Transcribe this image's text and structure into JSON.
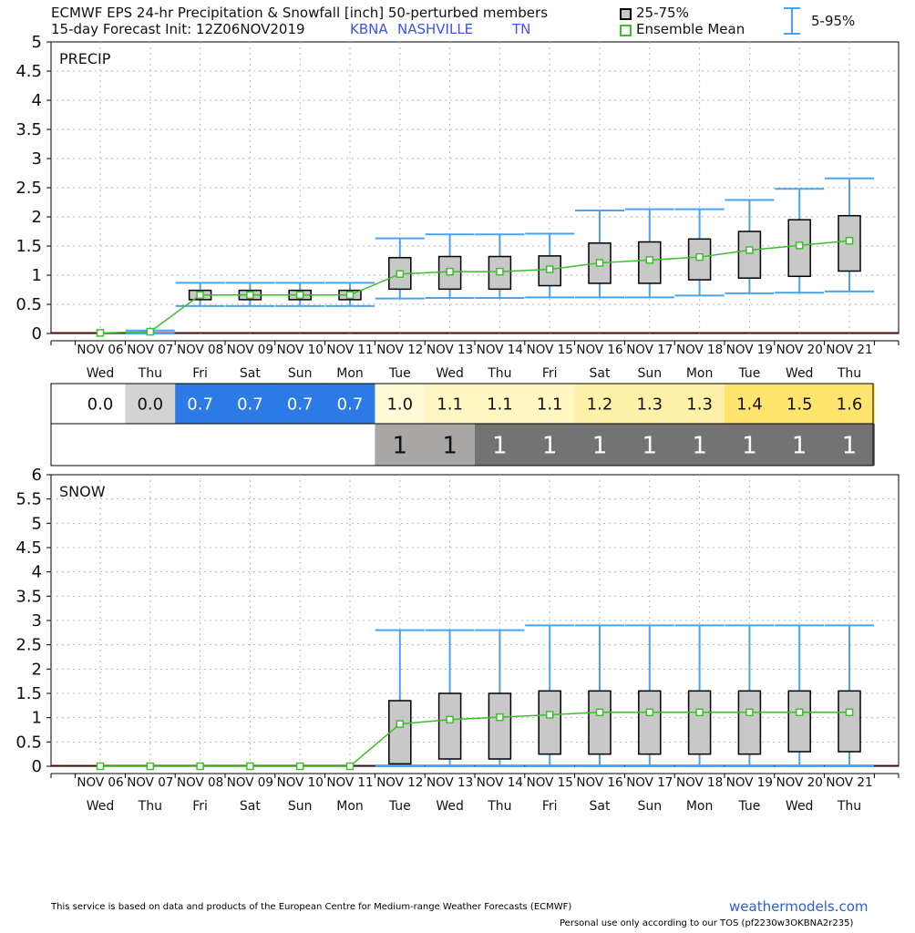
{
  "header": {
    "title": "ECMWF EPS 24-hr Precipitation & Snowfall [inch]  50-perturbed members",
    "subtitle": "15-day Forecast Init: 12Z06NOV2019",
    "location_station": "KBNA",
    "location_city": "NASHVILLE",
    "location_state": "TN",
    "legend_box": "25-75%",
    "legend_mean": "Ensemble Mean",
    "legend_whisker": "5-95%"
  },
  "footer": {
    "disclaimer": "This service is based on data and products of the European Centre for Medium-range Weather Forecasts (ECMWF)",
    "site": "weathermodels.com",
    "tos": "Personal use only according to our TOS (pf2230w3OKBNA2r235)"
  },
  "colors": {
    "box_fill": "#c8c8c8",
    "mean_line": "#3cbf2a",
    "whisker": "#4aa3f0",
    "grid": "#b8b8b8"
  },
  "chart_data": [
    {
      "type": "box",
      "panel_label": "PRECIP",
      "ylim": [
        0,
        5
      ],
      "yticks": [
        "0",
        "0.5",
        "1",
        "1.5",
        "2",
        "2.5",
        "3",
        "3.5",
        "4",
        "4.5",
        "5"
      ],
      "grid": true,
      "categories": [
        "NOV 06",
        "NOV 07",
        "NOV 08",
        "NOV 09",
        "NOV 10",
        "NOV 11",
        "NOV 12",
        "NOV 13",
        "NOV 14",
        "NOV 15",
        "NOV 16",
        "NOV 17",
        "NOV 18",
        "NOV 19",
        "NOV 20",
        "NOV 21"
      ],
      "weekdays": [
        "Wed",
        "Thu",
        "Fri",
        "Sat",
        "Sun",
        "Mon",
        "Tue",
        "Wed",
        "Thu",
        "Fri",
        "Sat",
        "Sun",
        "Mon",
        "Tue",
        "Wed",
        "Thu"
      ],
      "q25": [
        null,
        null,
        0.58,
        0.58,
        0.58,
        0.58,
        0.76,
        0.76,
        0.76,
        0.82,
        0.86,
        0.86,
        0.92,
        0.95,
        0.98,
        1.07
      ],
      "q75": [
        null,
        null,
        0.74,
        0.74,
        0.74,
        0.74,
        1.3,
        1.32,
        1.32,
        1.33,
        1.55,
        1.57,
        1.62,
        1.75,
        1.95,
        2.02
      ],
      "p5": [
        0,
        0,
        0.47,
        0.47,
        0.47,
        0.47,
        0.6,
        0.61,
        0.61,
        0.62,
        0.62,
        0.62,
        0.65,
        0.69,
        0.7,
        0.72
      ],
      "p95": [
        0,
        0.05,
        0.87,
        0.87,
        0.87,
        0.87,
        1.63,
        1.7,
        1.7,
        1.71,
        2.11,
        2.13,
        2.13,
        2.29,
        2.48,
        2.66
      ],
      "mean": [
        0.01,
        0.03,
        0.66,
        0.66,
        0.66,
        0.66,
        1.02,
        1.06,
        1.06,
        1.1,
        1.21,
        1.26,
        1.31,
        1.43,
        1.51,
        1.59
      ]
    },
    {
      "type": "box",
      "panel_label": "SNOW",
      "ylim": [
        0,
        6
      ],
      "yticks": [
        "0",
        "0.5",
        "1",
        "1.5",
        "2",
        "2.5",
        "3",
        "3.5",
        "4",
        "4.5",
        "5",
        "5.5",
        "6"
      ],
      "grid": true,
      "categories": [
        "NOV 06",
        "NOV 07",
        "NOV 08",
        "NOV 09",
        "NOV 10",
        "NOV 11",
        "NOV 12",
        "NOV 13",
        "NOV 14",
        "NOV 15",
        "NOV 16",
        "NOV 17",
        "NOV 18",
        "NOV 19",
        "NOV 20",
        "NOV 21"
      ],
      "weekdays": [
        "Wed",
        "Thu",
        "Fri",
        "Sat",
        "Sun",
        "Mon",
        "Tue",
        "Wed",
        "Thu",
        "Fri",
        "Sat",
        "Sun",
        "Mon",
        "Tue",
        "Wed",
        "Thu"
      ],
      "q25": [
        null,
        null,
        null,
        null,
        null,
        null,
        0.05,
        0.15,
        0.15,
        0.25,
        0.25,
        0.25,
        0.25,
        0.25,
        0.3,
        0.3
      ],
      "q75": [
        null,
        null,
        null,
        null,
        null,
        null,
        1.35,
        1.5,
        1.5,
        1.55,
        1.55,
        1.55,
        1.55,
        1.55,
        1.55,
        1.55
      ],
      "p5": [
        null,
        null,
        null,
        null,
        null,
        null,
        0,
        0,
        0,
        0,
        0,
        0,
        0,
        0,
        0,
        0
      ],
      "p95": [
        null,
        null,
        null,
        null,
        null,
        null,
        2.8,
        2.8,
        2.8,
        2.9,
        2.9,
        2.9,
        2.9,
        2.9,
        2.9,
        2.9
      ],
      "mean": [
        0,
        0,
        0,
        0,
        0,
        0,
        0.87,
        0.96,
        1.01,
        1.06,
        1.11,
        1.11,
        1.11,
        1.11,
        1.11,
        1.11
      ]
    }
  ],
  "mean_table": {
    "values": [
      "0.0",
      "0.0",
      "0.7",
      "0.7",
      "0.7",
      "0.7",
      "1.0",
      "1.1",
      "1.1",
      "1.1",
      "1.2",
      "1.3",
      "1.3",
      "1.4",
      "1.5",
      "1.6"
    ],
    "bg": [
      "#ffffff",
      "#d3d3d3",
      "#2b7ae6",
      "#2b7ae6",
      "#2b7ae6",
      "#2b7ae6",
      "#fffbd6",
      "#fff6c2",
      "#fff6c2",
      "#fff6c2",
      "#fff2a8",
      "#fff2a8",
      "#fff2a8",
      "#ffe46e",
      "#ffe46e",
      "#ffe46e"
    ],
    "fg": [
      "#111111",
      "#111111",
      "#ffffff",
      "#ffffff",
      "#ffffff",
      "#ffffff",
      "#111111",
      "#111111",
      "#111111",
      "#111111",
      "#111111",
      "#111111",
      "#111111",
      "#111111",
      "#111111",
      "#111111"
    ]
  },
  "snow_table": {
    "values": [
      "",
      "",
      "",
      "",
      "",
      "",
      "1",
      "1",
      "1",
      "1",
      "1",
      "1",
      "1",
      "1",
      "1",
      "1"
    ],
    "bg": [
      "#ffffff",
      "#ffffff",
      "#ffffff",
      "#ffffff",
      "#ffffff",
      "#ffffff",
      "#a9a6a6",
      "#a9a6a6",
      "#737373",
      "#737373",
      "#737373",
      "#737373",
      "#737373",
      "#737373",
      "#737373",
      "#737373"
    ],
    "fg": [
      "#111111",
      "#111111",
      "#111111",
      "#111111",
      "#111111",
      "#111111",
      "#111111",
      "#111111",
      "#ffffff",
      "#ffffff",
      "#ffffff",
      "#ffffff",
      "#ffffff",
      "#ffffff",
      "#ffffff",
      "#ffffff"
    ]
  }
}
